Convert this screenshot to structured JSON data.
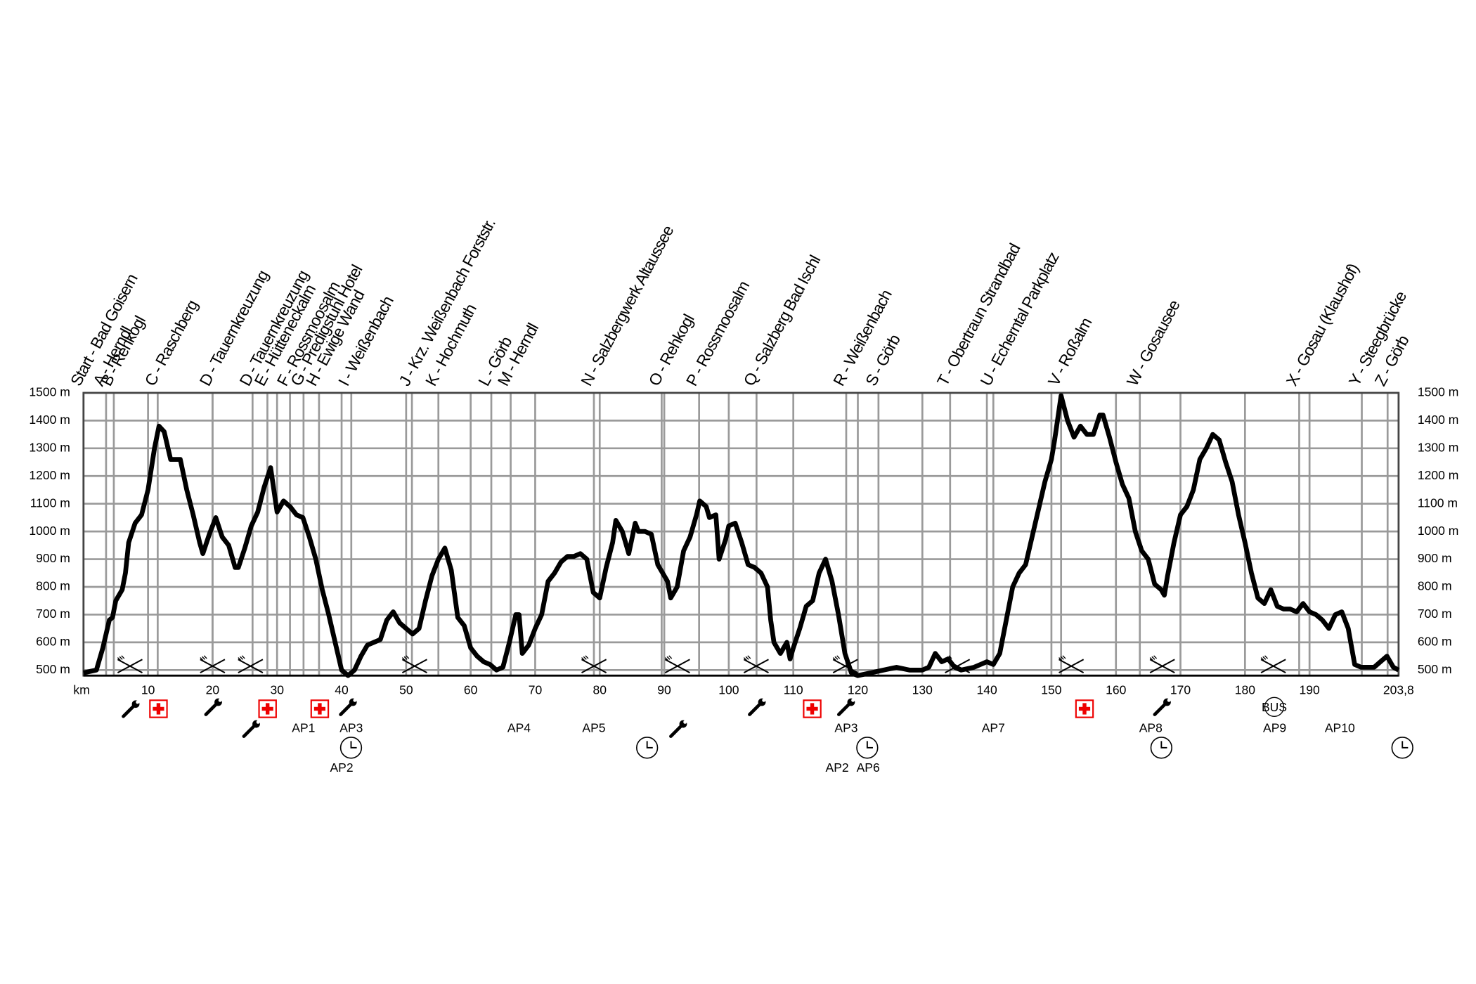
{
  "chart_data": {
    "type": "line",
    "x_label": "km",
    "xlim": [
      0,
      203.8
    ],
    "ylim": [
      480,
      1500
    ],
    "xticks": [
      10,
      20,
      30,
      40,
      50,
      60,
      70,
      80,
      90,
      100,
      110,
      120,
      130,
      140,
      150,
      160,
      170,
      180,
      190,
      {
        "value": 203.8,
        "label": "203,8"
      }
    ],
    "yticks": [
      {
        "value": 500,
        "label": "500 m"
      },
      {
        "value": 600,
        "label": "600 m"
      },
      {
        "value": 700,
        "label": "700 m"
      },
      {
        "value": 800,
        "label": "800 m"
      },
      {
        "value": 900,
        "label": "900 m"
      },
      {
        "value": 1000,
        "label": "1000 m"
      },
      {
        "value": 1100,
        "label": "1100 m"
      },
      {
        "value": 1200,
        "label": "1200 m"
      },
      {
        "value": 1300,
        "label": "1300 m"
      },
      {
        "value": 1400,
        "label": "1400 m"
      },
      {
        "value": 1500,
        "label": "1500 m"
      }
    ],
    "grid": true,
    "color": "#000000",
    "x": [
      0,
      2,
      3,
      4,
      4.5,
      5,
      6,
      6.5,
      7,
      8,
      9,
      10,
      11,
      11.7,
      12.5,
      13.5,
      15,
      16,
      17,
      18,
      18.5,
      19.5,
      20.5,
      21.5,
      22.5,
      23.5,
      24,
      25,
      26,
      27,
      28,
      29,
      30,
      31,
      32,
      33,
      34,
      35,
      36,
      37,
      38,
      39,
      40,
      41,
      42,
      43,
      44,
      45,
      46,
      47,
      48,
      49,
      50,
      51,
      52,
      53,
      54,
      55,
      56,
      57,
      58,
      59,
      60,
      61,
      62,
      63,
      64,
      65,
      66,
      67,
      67.5,
      68,
      69,
      70,
      71,
      72,
      73,
      74,
      75,
      76,
      77,
      78,
      79,
      80,
      81,
      82,
      82.5,
      83.5,
      84.5,
      85.5,
      86,
      87,
      88,
      89,
      90,
      90.5,
      91,
      92,
      93,
      94,
      95,
      95.5,
      96.5,
      97,
      98,
      98.5,
      99.5,
      100,
      101,
      102,
      103,
      104,
      105,
      106,
      106.5,
      107,
      108,
      109,
      109.5,
      110,
      111,
      112,
      113,
      114,
      115,
      116,
      117,
      118,
      119,
      120,
      122,
      124,
      126,
      128,
      130,
      131,
      132,
      133,
      134,
      135,
      136,
      138,
      140,
      141,
      142,
      143,
      144,
      145,
      146,
      147,
      148,
      149,
      150,
      150.5,
      151.5,
      152.5,
      153.5,
      154.5,
      155.5,
      156.5,
      157.5,
      158,
      159,
      160,
      161,
      162,
      163,
      164,
      165,
      166,
      167,
      167.5,
      168,
      169,
      170,
      171,
      172,
      173,
      174,
      175,
      176,
      177,
      178,
      179,
      180,
      181,
      182,
      183,
      184,
      185,
      186,
      187,
      188,
      189,
      190,
      191,
      192,
      193,
      194,
      195,
      196,
      197,
      198,
      199,
      200,
      201,
      202,
      203,
      203.8
    ],
    "values": [
      490,
      500,
      580,
      680,
      690,
      750,
      790,
      850,
      960,
      1030,
      1060,
      1150,
      1300,
      1380,
      1360,
      1260,
      1260,
      1150,
      1060,
      960,
      920,
      990,
      1050,
      980,
      950,
      870,
      870,
      940,
      1020,
      1070,
      1160,
      1230,
      1070,
      1110,
      1090,
      1060,
      1050,
      980,
      900,
      790,
      700,
      600,
      500,
      480,
      500,
      550,
      590,
      600,
      610,
      680,
      710,
      670,
      650,
      630,
      650,
      750,
      840,
      900,
      940,
      860,
      690,
      660,
      580,
      550,
      530,
      520,
      500,
      510,
      600,
      700,
      700,
      560,
      590,
      650,
      700,
      820,
      850,
      890,
      910,
      910,
      920,
      900,
      780,
      760,
      870,
      960,
      1040,
      1000,
      920,
      1030,
      1000,
      1000,
      990,
      880,
      840,
      820,
      760,
      800,
      930,
      980,
      1060,
      1110,
      1090,
      1050,
      1060,
      900,
      970,
      1020,
      1030,
      960,
      880,
      870,
      850,
      800,
      680,
      600,
      560,
      600,
      540,
      580,
      650,
      730,
      750,
      850,
      900,
      820,
      700,
      560,
      490,
      480,
      490,
      500,
      510,
      500,
      500,
      510,
      560,
      530,
      540,
      510,
      500,
      510,
      530,
      520,
      560,
      680,
      800,
      850,
      880,
      980,
      1080,
      1180,
      1260,
      1330,
      1490,
      1400,
      1340,
      1380,
      1350,
      1350,
      1420,
      1420,
      1340,
      1250,
      1170,
      1120,
      1000,
      930,
      900,
      810,
      790,
      770,
      840,
      960,
      1060,
      1090,
      1150,
      1260,
      1300,
      1350,
      1330,
      1250,
      1180,
      1060,
      960,
      850,
      760,
      740,
      790,
      730,
      720,
      720,
      710,
      740,
      710,
      700,
      680,
      650,
      700,
      710,
      650,
      520,
      510,
      510,
      510,
      530,
      550,
      510,
      500
    ],
    "waypoints": [
      {
        "label": "Start - Bad Goisern",
        "x": 0
      },
      {
        "label": "A - Herndl",
        "x": 3.5
      },
      {
        "label": "B - Rehkogl",
        "x": 4.7
      },
      {
        "label": "C - Raschberg",
        "x": 11.5
      },
      {
        "label": "D - Tauernkreuzung",
        "x": 20
      },
      {
        "label": "D - Tauernkreuzung",
        "x": 26.2
      },
      {
        "label": "E - Hütteneckalm",
        "x": 28.5
      },
      {
        "label": "F - Rossmoosalm",
        "x": 32
      },
      {
        "label": "G - Predigstuhl Hotel",
        "x": 34.1
      },
      {
        "label": "H - Ewige Wand",
        "x": 36.5
      },
      {
        "label": "I - Weißenbach",
        "x": 41.5
      },
      {
        "label": "J - Krz. Weißenbach Forststr.",
        "x": 50.9
      },
      {
        "label": "K - Hochmuth",
        "x": 55
      },
      {
        "label": "L - Görb",
        "x": 63.2
      },
      {
        "label": "M - Herndl",
        "x": 66.2
      },
      {
        "label": "N - Salzbergwerk Altaussee",
        "x": 79.1
      },
      {
        "label": "O - Rehkogl",
        "x": 89.6
      },
      {
        "label": "P - Rossmoosalm",
        "x": 95.4
      },
      {
        "label": "Q - Salzberg Bad Ischl",
        "x": 104.3
      },
      {
        "label": "R - Weißenbach",
        "x": 118.2
      },
      {
        "label": "S - Görb",
        "x": 123.2
      },
      {
        "label": "T - Obertraun Strandbad",
        "x": 134.3
      },
      {
        "label": "U - Echerntal Parkplatz",
        "x": 141
      },
      {
        "label": "V - Roßalm",
        "x": 151.5
      },
      {
        "label": "W - Gosausee",
        "x": 163.7
      },
      {
        "label": "X - Gosau (Klaushof)",
        "x": 188.4
      },
      {
        "label": "Y - Steegbrücke",
        "x": 198.1
      },
      {
        "label": "Z - Görb",
        "x": 202.1
      }
    ],
    "aid_stations": [
      {
        "label": "AP1",
        "x": 34.1
      },
      {
        "label": "AP3",
        "x": 41.5
      },
      {
        "label": "AP2",
        "x": 40
      },
      {
        "label": "AP4",
        "x": 67.5
      },
      {
        "label": "AP5",
        "x": 79.1
      },
      {
        "label": "AP3",
        "x": 118.2
      },
      {
        "label": "AP2",
        "x": 116.8
      },
      {
        "label": "AP6",
        "x": 121.6
      },
      {
        "label": "AP7",
        "x": 141
      },
      {
        "label": "AP8",
        "x": 165.4
      },
      {
        "label": "AP9",
        "x": 184.6
      },
      {
        "label": "AP10",
        "x": 194.7
      }
    ],
    "bus_icon": "BUS"
  }
}
